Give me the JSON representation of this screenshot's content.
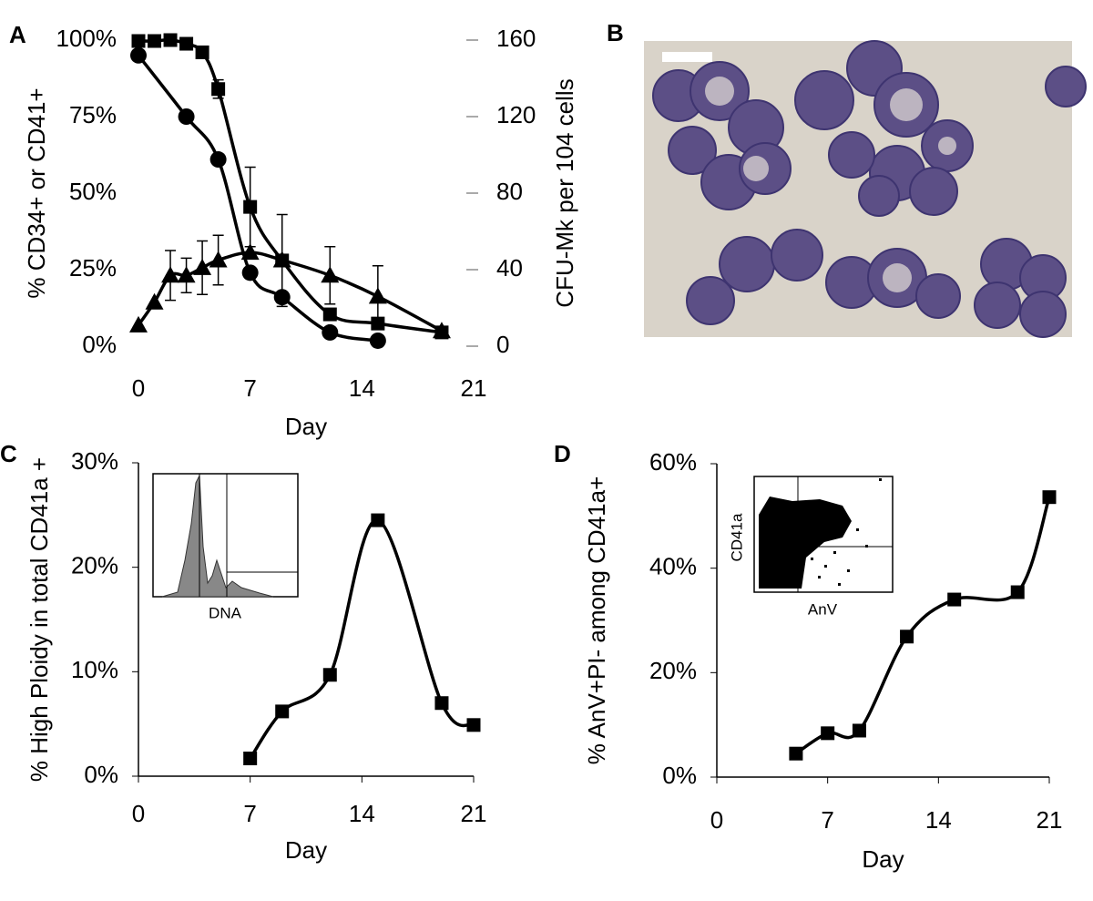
{
  "chart_data": [
    {
      "type": "line",
      "panel_label": "A",
      "xlabel": "Day",
      "ylabel": "% CD34+ or CD41+",
      "y2label": "CFU-Mk per 104 cells",
      "xlim": [
        0,
        21
      ],
      "xticks": [
        0,
        7,
        14,
        21
      ],
      "ylim": [
        0,
        100
      ],
      "yticks": [
        {
          "value": 0,
          "label": "0%"
        },
        {
          "value": 25,
          "label": "25%"
        },
        {
          "value": 50,
          "label": "50%"
        },
        {
          "value": 75,
          "label": "75%"
        },
        {
          "value": 100,
          "label": "100%"
        }
      ],
      "y2lim": [
        0,
        160
      ],
      "y2ticks": [
        0,
        40,
        80,
        120,
        160
      ],
      "smooth": true,
      "series": [
        {
          "marker": "square",
          "color": "#000000",
          "x": [
            0,
            1,
            2,
            3,
            4,
            5,
            7,
            9,
            12,
            15,
            19
          ],
          "values": [
            99.7,
            99.7,
            100,
            98.8,
            96,
            84,
            45.5,
            28,
            10.4,
            7.4,
            4.5
          ],
          "errors": [
            null,
            null,
            null,
            null,
            null,
            3,
            13,
            15,
            null,
            null,
            null
          ]
        },
        {
          "marker": "circle",
          "color": "#000000",
          "x": [
            0,
            3,
            5,
            7,
            9,
            12,
            15
          ],
          "values": [
            95,
            75,
            61,
            24,
            16,
            4.5,
            1.8
          ]
        },
        {
          "marker": "triangle",
          "color": "#000000",
          "axis": "y2",
          "x": [
            0,
            1,
            2,
            3,
            4,
            5,
            7,
            9,
            12,
            15,
            19
          ],
          "values": [
            11,
            23,
            37,
            37,
            41,
            45,
            49,
            45,
            37,
            26,
            8
          ],
          "errors": [
            null,
            null,
            13,
            9,
            14,
            13,
            null,
            null,
            15,
            16,
            null
          ]
        }
      ]
    },
    {
      "type": "image",
      "panel_label": "B"
    },
    {
      "type": "line",
      "panel_label": "C",
      "xlabel": "Day",
      "ylabel": "% High Ploidy in total CD41a +",
      "inset_label": "DNA",
      "xlim": [
        0,
        21
      ],
      "xticks": [
        0,
        7,
        14,
        21
      ],
      "ylim": [
        0,
        30
      ],
      "yticks": [
        {
          "value": 0,
          "label": "0%"
        },
        {
          "value": 10,
          "label": "10%"
        },
        {
          "value": 20,
          "label": "20%"
        },
        {
          "value": 30,
          "label": "30%"
        }
      ],
      "smooth": true,
      "series": [
        {
          "marker": "square",
          "color": "#000000",
          "x": [
            7,
            9,
            12,
            15,
            19,
            21
          ],
          "values": [
            1.7,
            6.2,
            9.7,
            24.5,
            7.0,
            4.9
          ]
        }
      ]
    },
    {
      "type": "line",
      "panel_label": "D",
      "xlabel": "Day",
      "ylabel": "% AnV+PI- among CD41a+",
      "inset_xlabel": "AnV",
      "inset_ylabel": "CD41a",
      "xlim": [
        0,
        21
      ],
      "xticks": [
        0,
        7,
        14,
        21
      ],
      "ylim": [
        0,
        60
      ],
      "yticks": [
        {
          "value": 0,
          "label": "0%"
        },
        {
          "value": 20,
          "label": "20%"
        },
        {
          "value": 40,
          "label": "40%"
        },
        {
          "value": 60,
          "label": "60%"
        }
      ],
      "smooth": true,
      "series": [
        {
          "marker": "square",
          "color": "#000000",
          "x": [
            5,
            7,
            9,
            12,
            15,
            19,
            21
          ],
          "values": [
            4.5,
            8.4,
            8.9,
            26.9,
            34,
            35.4,
            53.6
          ]
        }
      ]
    }
  ]
}
